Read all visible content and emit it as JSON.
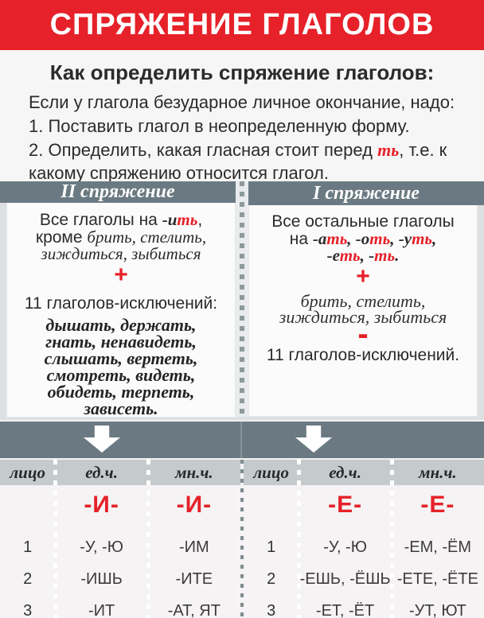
{
  "colors": {
    "accent_red": "#e62129",
    "slate_band": "#6b7a82",
    "table_header_bg": "#c5cacd",
    "panel_bg": "#fcfbfb"
  },
  "banner": {
    "title": "СПРЯЖЕНИЕ ГЛАГОЛОВ"
  },
  "howto": {
    "title": "Как определить спряжение глаголов:",
    "intro": "Если у глагола безударное личное окончание, надо:",
    "step1": "1. Поставить глагол в неопределенную форму.",
    "step2": [
      [
        {
          "t": "2. Определить, какая гласная стоит перед ",
          "c": "plain"
        },
        {
          "t": "ть",
          "c": "bitred"
        },
        {
          "t": ", т.е. к какому спряжению относится глагол.",
          "c": "plain"
        }
      ]
    ]
  },
  "conjugation_second": {
    "header": "II спряжение",
    "rule_lines": [
      [
        {
          "t": "Все глаголы на ",
          "c": "plain"
        },
        {
          "t": "-и",
          "c": "bit"
        },
        {
          "t": "ть",
          "c": "bitred"
        },
        {
          "t": ",",
          "c": "plain"
        }
      ],
      [
        {
          "t": "кроме ",
          "c": "plain"
        },
        {
          "t": "брить, стелить,",
          "c": "it"
        }
      ],
      [
        {
          "t": "зиждиться, зыбиться",
          "c": "it"
        }
      ]
    ],
    "plus": "+",
    "exceptions_label": "11 глаголов-исключений:",
    "exception_lines": [
      "дышать, держать,",
      "гнать, ненавидеть,",
      "слышать, вертеть,",
      "смотреть, видеть,",
      "обидеть, терпеть,",
      "зависеть."
    ]
  },
  "conjugation_first": {
    "header": "I спряжение",
    "rule_lines": [
      [
        {
          "t": "Все остальные глаголы",
          "c": "plain"
        }
      ],
      [
        {
          "t": "на ",
          "c": "plain"
        },
        {
          "t": "-а",
          "c": "bit"
        },
        {
          "t": "ть",
          "c": "bitred"
        },
        {
          "t": ", ",
          "c": "bit"
        },
        {
          "t": "-о",
          "c": "bit"
        },
        {
          "t": "ть",
          "c": "bitred"
        },
        {
          "t": ", ",
          "c": "bit"
        },
        {
          "t": "-у",
          "c": "bit"
        },
        {
          "t": "ть",
          "c": "bitred"
        },
        {
          "t": ",",
          "c": "bit"
        }
      ],
      [
        {
          "t": "-е",
          "c": "bit"
        },
        {
          "t": "ть",
          "c": "bitred"
        },
        {
          "t": ", ",
          "c": "bit"
        },
        {
          "t": "-",
          "c": "bit"
        },
        {
          "t": "ть",
          "c": "bitred"
        },
        {
          "t": ".",
          "c": "bit"
        }
      ]
    ],
    "plus": "+",
    "extra_lines": [
      "брить, стелить,",
      "зиждиться, зыбиться"
    ],
    "minus": "-",
    "exceptions_label": "11 глаголов-исключений."
  },
  "table_second": {
    "person_label": "лицо",
    "singular_label": "ед.ч.",
    "plural_label": "мн.ч.",
    "singular_ending": "-И-",
    "plural_ending": "-И-",
    "rows": [
      {
        "person": "1",
        "singular": "-У, -Ю",
        "plural": "-ИМ"
      },
      {
        "person": "2",
        "singular": "-ИШЬ",
        "plural": "-ИТЕ"
      },
      {
        "person": "3",
        "singular": "-ИТ",
        "plural": "-АТ, ЯТ"
      }
    ]
  },
  "table_first": {
    "person_label": "лицо",
    "singular_label": "ед.ч.",
    "plural_label": "мн.ч.",
    "singular_ending": "-Е-",
    "plural_ending": "-Е-",
    "rows": [
      {
        "person": "1",
        "singular": "-У, -Ю",
        "plural": "-ЕМ, -ЁМ"
      },
      {
        "person": "2",
        "singular": "-ЕШЬ, -ЁШЬ",
        "plural": "-ЕТЕ, -ЁТЕ"
      },
      {
        "person": "3",
        "singular": "-ЕТ, -ЁТ",
        "plural": "-УТ, ЮТ"
      }
    ]
  }
}
